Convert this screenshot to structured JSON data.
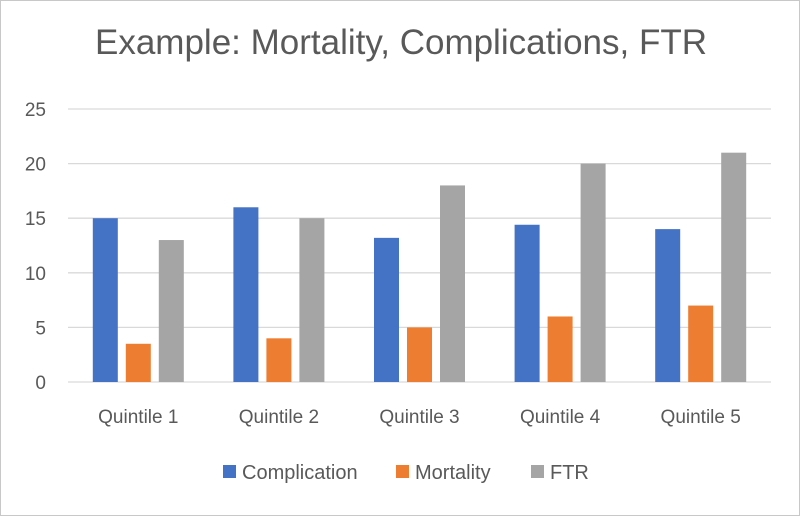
{
  "chart_data": {
    "type": "bar",
    "title": "Example: Mortality, Complications, FTR",
    "xlabel": "",
    "ylabel": "",
    "categories": [
      "Quintile 1",
      "Quintile 2",
      "Quintile 3",
      "Quintile 4",
      "Quintile 5"
    ],
    "series": [
      {
        "name": "Complication",
        "values": [
          15,
          16,
          13.2,
          14.4,
          14
        ],
        "color": "#4472C4"
      },
      {
        "name": "Mortality",
        "values": [
          3.5,
          4,
          5,
          6,
          7
        ],
        "color": "#ED7D31"
      },
      {
        "name": "FTR",
        "values": [
          13,
          15,
          18,
          20,
          21
        ],
        "color": "#A5A5A5"
      }
    ],
    "ylim": [
      0,
      25
    ],
    "yticks": [
      "0",
      "5",
      "10",
      "15",
      "20",
      "25"
    ],
    "grid": true,
    "legend": "bottom"
  }
}
